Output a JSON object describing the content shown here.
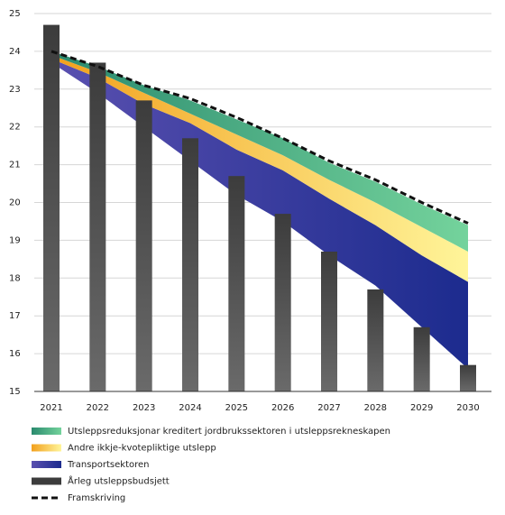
{
  "chart_data": {
    "type": "combo",
    "categories": [
      "2021",
      "2022",
      "2023",
      "2024",
      "2025",
      "2026",
      "2027",
      "2028",
      "2029",
      "2030"
    ],
    "ylim": [
      15,
      25
    ],
    "yticks": [
      15,
      16,
      17,
      18,
      19,
      20,
      21,
      22,
      23,
      24,
      25
    ],
    "grid": true,
    "legend": "bottom",
    "series": [
      {
        "name": "Utsleppsreduksjonar kreditert jordbrukssektoren i utsleppsrekneskapen",
        "type": "area",
        "color": [
          "#2a8a6e",
          "#74d39c"
        ],
        "values": [
          0.1,
          0.15,
          0.2,
          0.35,
          0.4,
          0.45,
          0.45,
          0.55,
          0.6,
          0.7
        ]
      },
      {
        "name": "Andre ikkje-kvotepliktige utslepp",
        "type": "area",
        "color": [
          "#f2a01c",
          "#fff59a"
        ],
        "values": [
          0.1,
          0.15,
          0.3,
          0.25,
          0.4,
          0.4,
          0.5,
          0.6,
          0.75,
          0.8
        ]
      },
      {
        "name": "Transportsektoren",
        "type": "area",
        "color": [
          "#5a50b0",
          "#1c2b8e"
        ],
        "base": [
          23.7,
          22.9,
          22.0,
          21.1,
          20.2,
          19.5,
          18.6,
          17.8,
          16.7,
          15.6
        ],
        "values": [
          0.1,
          0.4,
          0.6,
          1.0,
          1.2,
          1.35,
          1.5,
          1.6,
          1.9,
          2.3
        ]
      },
      {
        "name": "Årleg utsleppsbudsjett",
        "type": "bar",
        "color": [
          "#3c3c3c",
          "#6a6a6a"
        ],
        "values": [
          24.7,
          23.7,
          22.7,
          21.7,
          20.7,
          19.7,
          18.7,
          17.7,
          16.7,
          15.7
        ]
      },
      {
        "name": "Framskriving",
        "type": "line",
        "dashed": true,
        "color": "#111111",
        "values": [
          24.0,
          23.6,
          23.1,
          22.75,
          22.25,
          21.7,
          21.1,
          20.6,
          20.0,
          19.45
        ]
      }
    ]
  }
}
